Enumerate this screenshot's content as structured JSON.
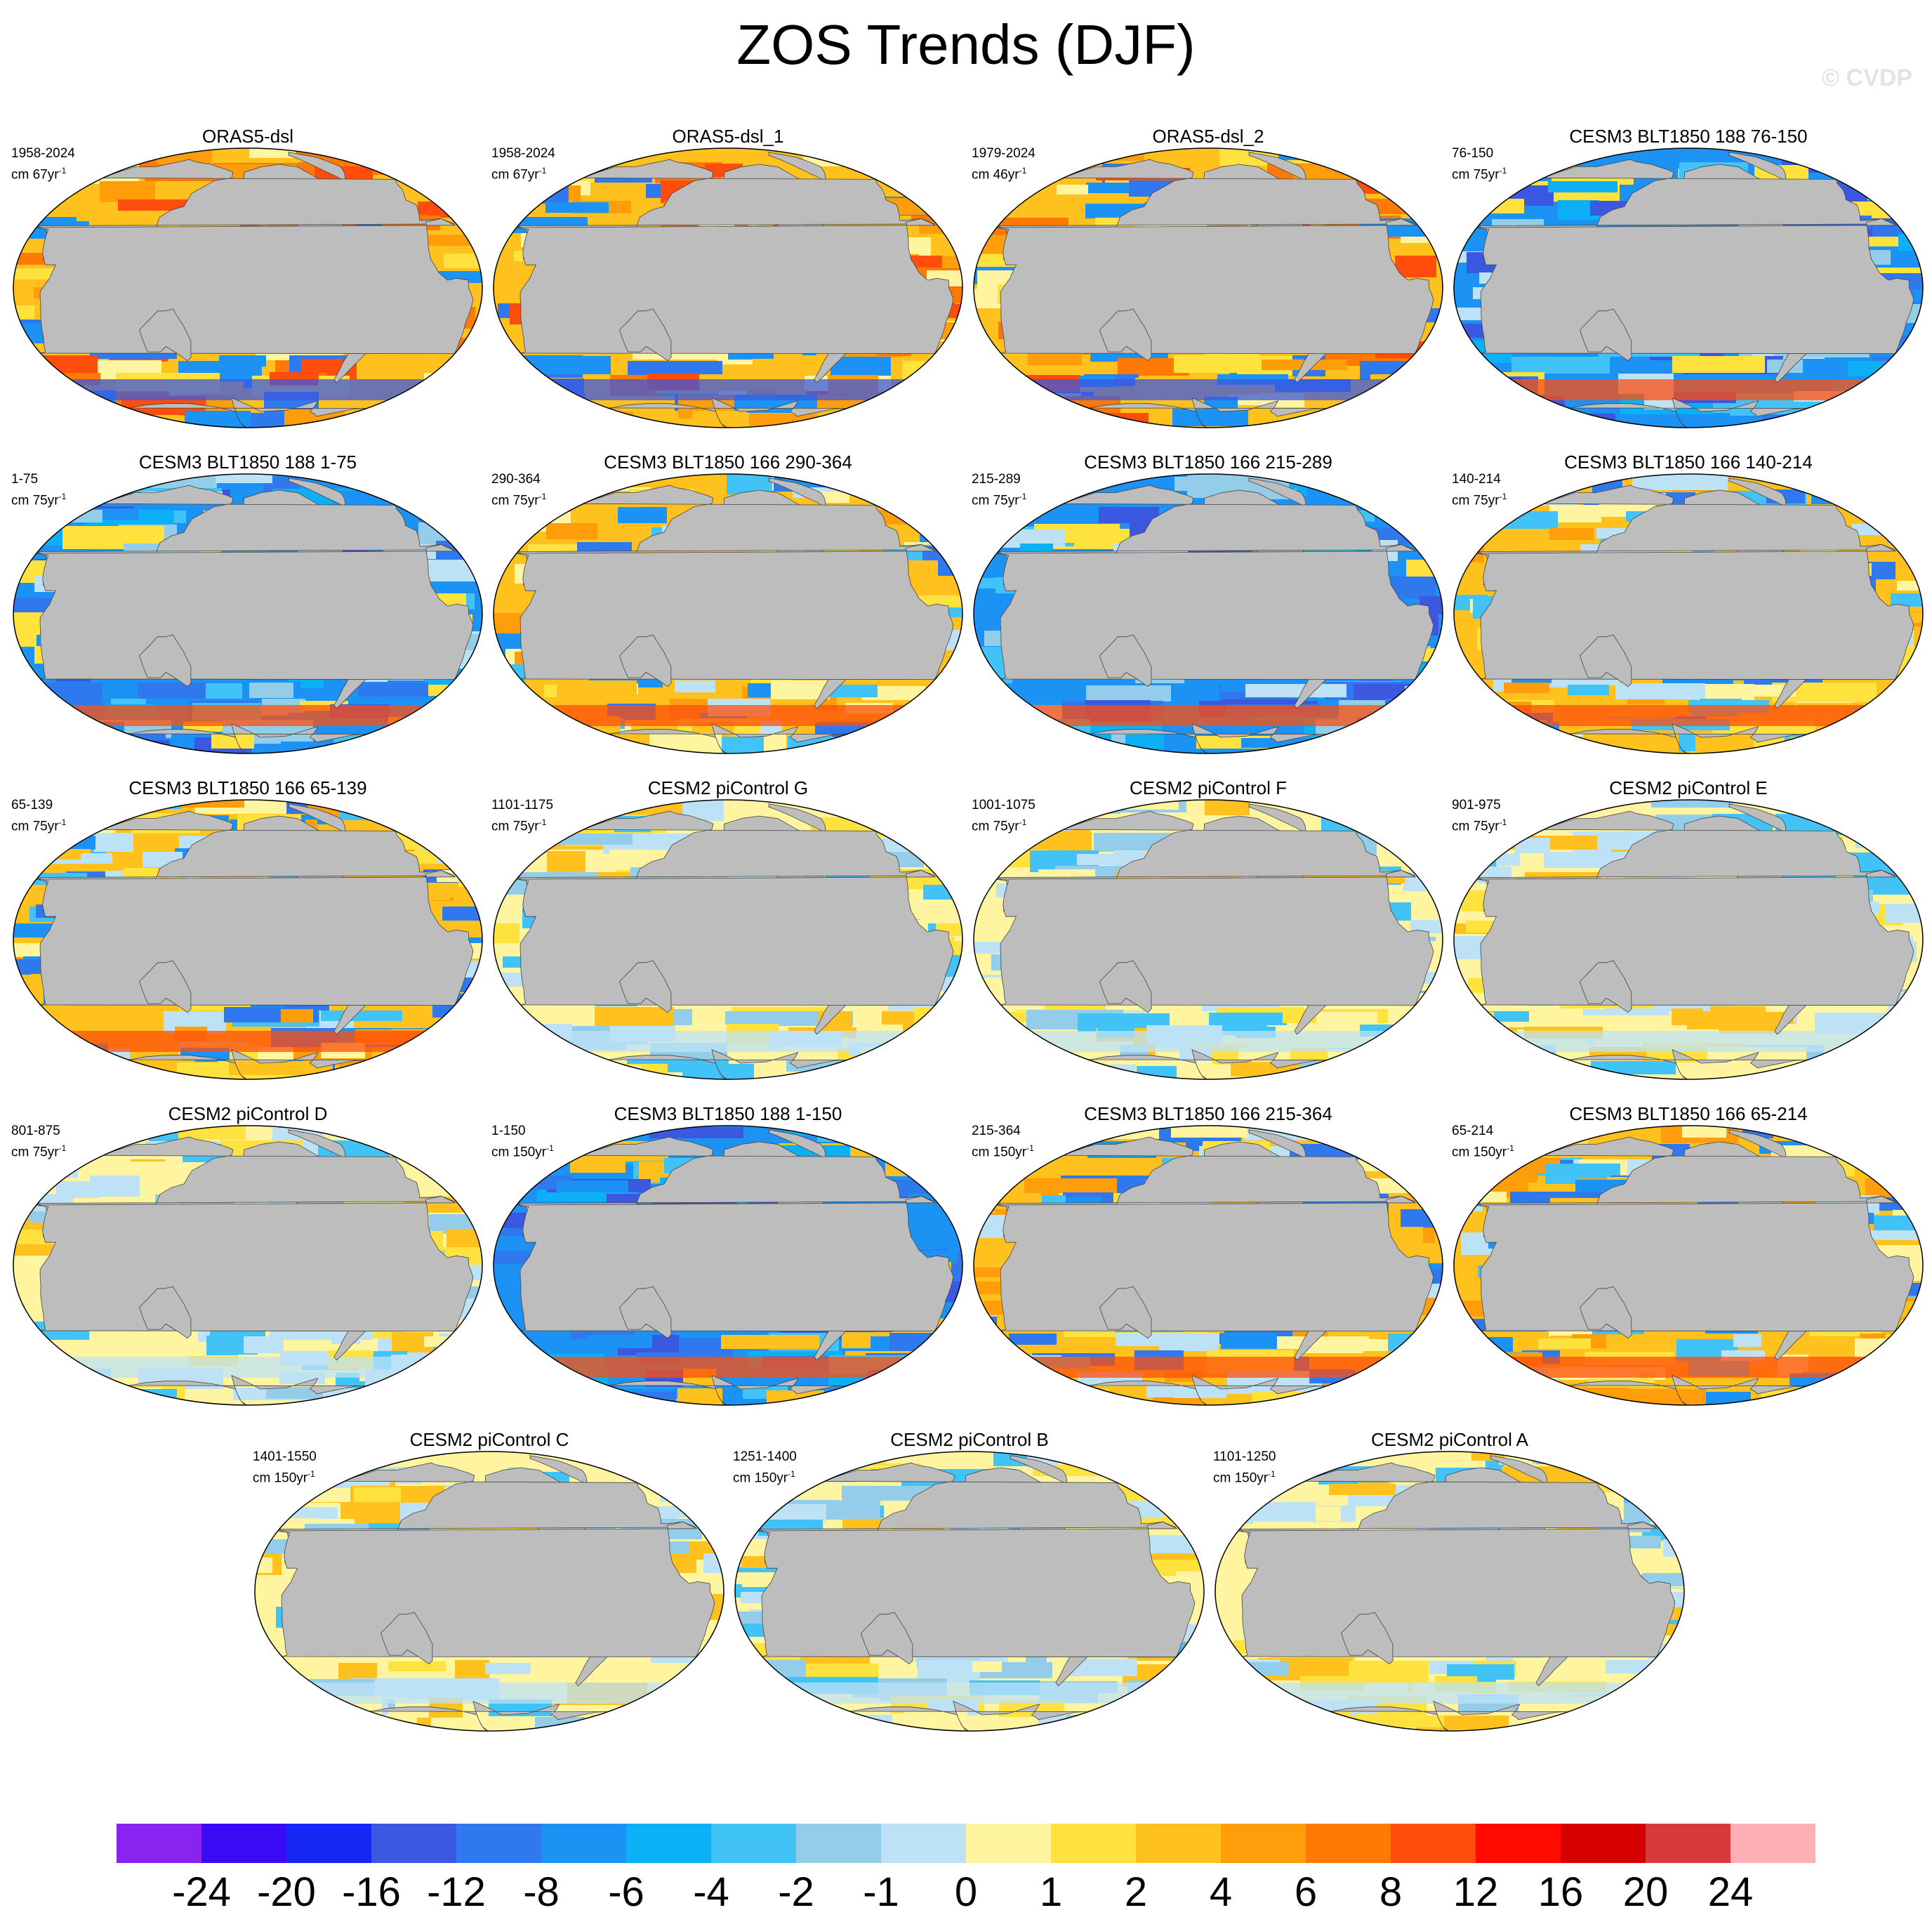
{
  "title": "ZOS Trends (DJF)",
  "watermark": "© CVDP",
  "units_prefix": "cm ",
  "units_suffix": "yr",
  "units_exponent": "-1",
  "panels": [
    {
      "title": "ORAS5-dsl",
      "period": "1958-2024",
      "span": "67",
      "scheme": "warm"
    },
    {
      "title": "ORAS5-dsl_1",
      "period": "1958-2024",
      "span": "67",
      "scheme": "warm"
    },
    {
      "title": "ORAS5-dsl_2",
      "period": "1979-2024",
      "span": "46",
      "scheme": "warm"
    },
    {
      "title": "CESM3 BLT1850 188 76-150",
      "period": "76-150",
      "span": "75",
      "scheme": "cool"
    },
    {
      "title": "CESM3 BLT1850 188 1-75",
      "period": "1-75",
      "span": "75",
      "scheme": "cool"
    },
    {
      "title": "CESM3 BLT1850 166 290-364",
      "period": "290-364",
      "span": "75",
      "scheme": "mixed"
    },
    {
      "title": "CESM3 BLT1850 166 215-289",
      "period": "215-289",
      "span": "75",
      "scheme": "cool"
    },
    {
      "title": "CESM3 BLT1850 166 140-214",
      "period": "140-214",
      "span": "75",
      "scheme": "mixed"
    },
    {
      "title": "CESM3 BLT1850 166 65-139",
      "period": "65-139",
      "span": "75",
      "scheme": "mixed"
    },
    {
      "title": "CESM2 piControl G",
      "period": "1101-1175",
      "span": "75",
      "scheme": "pale"
    },
    {
      "title": "CESM2 piControl F",
      "period": "1001-1075",
      "span": "75",
      "scheme": "pale"
    },
    {
      "title": "CESM2 piControl E",
      "period": "901-975",
      "span": "75",
      "scheme": "pale"
    },
    {
      "title": "CESM2 piControl D",
      "period": "801-875",
      "span": "75",
      "scheme": "pale"
    },
    {
      "title": "CESM3 BLT1850 188 1-150",
      "period": "1-150",
      "span": "150",
      "scheme": "deepcool"
    },
    {
      "title": "CESM3 BLT1850 166 215-364",
      "period": "215-364",
      "span": "150",
      "scheme": "mixed"
    },
    {
      "title": "CESM3 BLT1850 166 65-214",
      "period": "65-214",
      "span": "150",
      "scheme": "mixed"
    },
    {
      "title": "CESM2 piControl C",
      "period": "1401-1550",
      "span": "150",
      "scheme": "pale"
    },
    {
      "title": "CESM2 piControl B",
      "period": "1251-1400",
      "span": "150",
      "scheme": "pale"
    },
    {
      "title": "CESM2 piControl A",
      "period": "1101-1250",
      "span": "150",
      "scheme": "pale"
    }
  ],
  "colorbar": {
    "colors": [
      "#8a22f0",
      "#3a0af5",
      "#1526f5",
      "#3b58e0",
      "#2f78ee",
      "#1c92f5",
      "#0bb0f7",
      "#42c3f8",
      "#93cdea",
      "#bde2f6",
      "#fff5a0",
      "#ffe23d",
      "#ffc11e",
      "#ff9e0a",
      "#ff7a05",
      "#ff4d0b",
      "#ff0a00",
      "#d60000",
      "#d63a3a",
      "#ffb0b5"
    ],
    "labels": [
      "-24",
      "-20",
      "-16",
      "-12",
      "-8",
      "-6",
      "-4",
      "-2",
      "-1",
      "0",
      "1",
      "2",
      "4",
      "6",
      "8",
      "12",
      "16",
      "20",
      "24"
    ]
  }
}
